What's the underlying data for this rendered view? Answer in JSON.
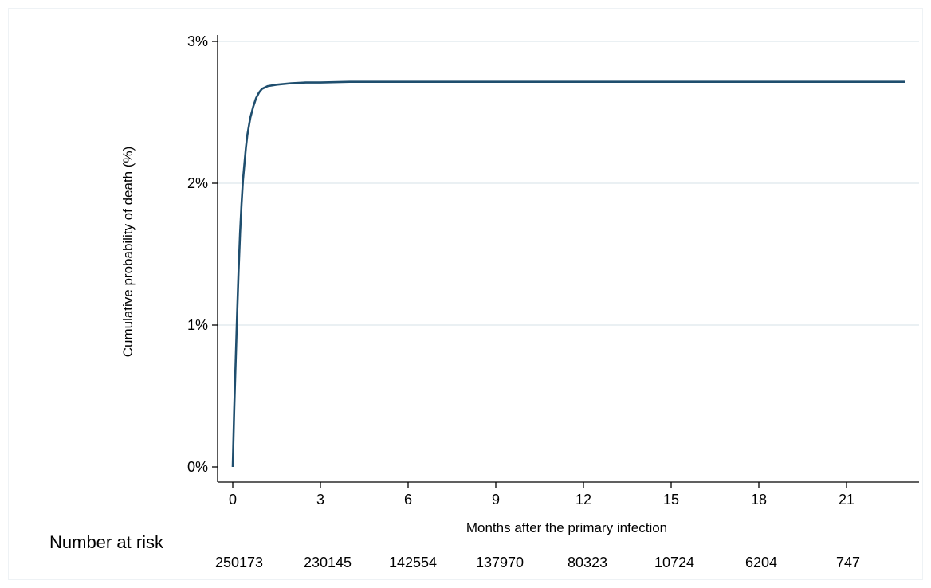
{
  "chart_data": {
    "type": "line",
    "title": "",
    "xlabel": "Months after the primary infection",
    "ylabel": "Cumulative probability of death  (%)",
    "xlim": [
      0,
      23
    ],
    "ylim": [
      0,
      3
    ],
    "x_ticks": [
      0,
      3,
      6,
      9,
      12,
      15,
      18,
      21
    ],
    "x_tick_labels": [
      "0",
      "3",
      "6",
      "9",
      "12",
      "15",
      "18",
      "21"
    ],
    "y_ticks": [
      0,
      1,
      2,
      3
    ],
    "y_tick_labels": [
      "0%",
      "1%",
      "2%",
      "3%"
    ],
    "grid": "horizontal",
    "line_color": "#1f4e6e",
    "series": [
      {
        "x": [
          0,
          0.05,
          0.1,
          0.15,
          0.2,
          0.25,
          0.3,
          0.35,
          0.4,
          0.45,
          0.5,
          0.6,
          0.7,
          0.8,
          0.9,
          1.0,
          1.2,
          1.5,
          2.0,
          2.5,
          3.0,
          4.0,
          6.0,
          10.0,
          15.0,
          20.0,
          23.0
        ],
        "y": [
          0,
          0.4,
          0.75,
          1.08,
          1.38,
          1.65,
          1.85,
          2.02,
          2.14,
          2.25,
          2.34,
          2.46,
          2.54,
          2.6,
          2.64,
          2.665,
          2.685,
          2.695,
          2.705,
          2.71,
          2.71,
          2.715,
          2.715,
          2.715,
          2.715,
          2.715,
          2.715
        ]
      }
    ],
    "risk_table": {
      "title": "Number at risk",
      "values": [
        "250173",
        "230145",
        "142554",
        "137970",
        "80323",
        "10724",
        "6204",
        "747"
      ]
    }
  }
}
